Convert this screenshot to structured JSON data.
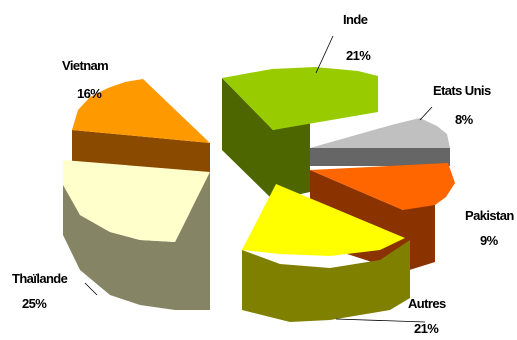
{
  "chart_data": {
    "type": "pie",
    "title": "",
    "slices": [
      {
        "label": "Inde",
        "value_label": "21%",
        "value": 21,
        "top_color": "#99cc00",
        "side_color": "#4d6600"
      },
      {
        "label": "Etats Unis",
        "value_label": "8%",
        "value": 8,
        "top_color": "#c0c0c0",
        "side_color": "#666666"
      },
      {
        "label": "Pakistan",
        "value_label": "9%",
        "value": 9,
        "top_color": "#ff6600",
        "side_color": "#8a3300"
      },
      {
        "label": "Autres",
        "value_label": "21%",
        "value": 21,
        "top_color": "#ffff00",
        "side_color": "#808000"
      },
      {
        "label": "Thaïlande",
        "value_label": "25%",
        "value": 25,
        "top_color": "#ffffcc",
        "side_color": "#858566"
      },
      {
        "label": "Vietnam",
        "value_label": "16%",
        "value": 16,
        "top_color": "#ff9900",
        "side_color": "#8a4a00"
      }
    ]
  }
}
